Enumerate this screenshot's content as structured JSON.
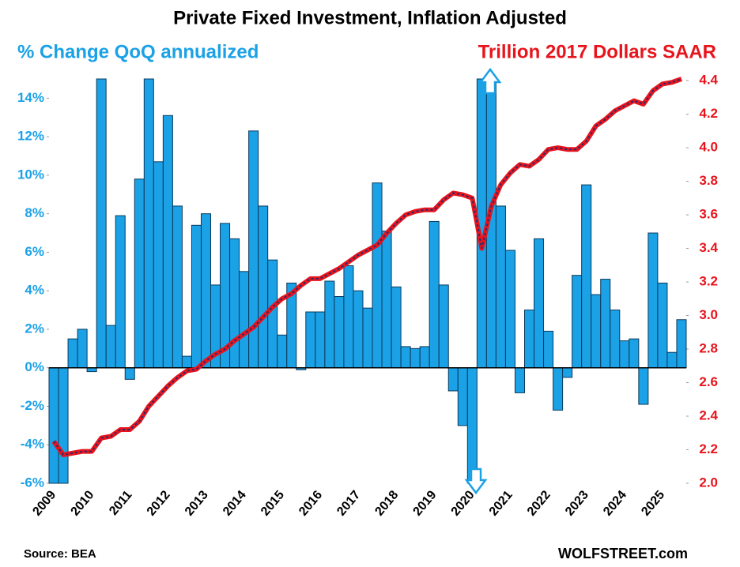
{
  "chart_data": {
    "type": "bar",
    "title": "Private Fixed Investment, Inflation Adjusted",
    "y_label": "% Change QoQ annualized",
    "y2_label": "Trillion 2017 Dollars SAAR",
    "source": "Source: BEA",
    "credit": "WOLFSTREET.com",
    "categories": [
      "2009",
      null,
      null,
      null,
      "2010",
      null,
      null,
      null,
      "2011",
      null,
      null,
      null,
      "2012",
      null,
      null,
      null,
      "2013",
      null,
      null,
      null,
      "2014",
      null,
      null,
      null,
      "2015",
      null,
      null,
      null,
      "2016",
      null,
      null,
      null,
      "2017",
      null,
      null,
      null,
      "2018",
      null,
      null,
      null,
      "2019",
      null,
      null,
      null,
      "2020",
      null,
      null,
      null,
      "2021",
      null,
      null,
      null,
      "2022",
      null,
      null,
      null,
      "2023",
      null,
      null,
      null,
      "2024",
      null,
      null,
      null,
      "2025",
      null,
      null
    ],
    "series": [
      {
        "name": "% Change QoQ annualized",
        "type": "bar",
        "axis": "y",
        "color": "#1ba1e6",
        "values": [
          -6,
          -6,
          1.5,
          2.0,
          -0.2,
          15,
          2.2,
          7.9,
          -0.6,
          9.8,
          15,
          10.7,
          13.1,
          8.4,
          0.6,
          7.4,
          8.0,
          4.3,
          7.5,
          6.7,
          5.0,
          12.3,
          8.4,
          5.6,
          1.7,
          4.4,
          -0.1,
          2.9,
          2.9,
          4.5,
          3.7,
          5.3,
          4.0,
          3.1,
          9.6,
          7.1,
          4.2,
          1.1,
          1.0,
          1.1,
          7.6,
          4.3,
          -1.2,
          -3.0,
          -6,
          15,
          15,
          8.4,
          6.1,
          -1.3,
          3.0,
          6.7,
          1.9,
          -2.2,
          -0.5,
          4.8,
          9.5,
          3.8,
          4.6,
          3.0,
          1.4,
          1.5,
          -1.9,
          7.0,
          4.4,
          0.8,
          2.5
        ]
      },
      {
        "name": "Trillion 2017 Dollars SAAR",
        "type": "line",
        "axis": "y2",
        "color": "#e8141c",
        "values": [
          2.25,
          2.17,
          2.18,
          2.19,
          2.19,
          2.27,
          2.28,
          2.32,
          2.32,
          2.37,
          2.46,
          2.52,
          2.58,
          2.63,
          2.67,
          2.68,
          2.73,
          2.77,
          2.8,
          2.85,
          2.89,
          2.93,
          2.99,
          3.05,
          3.1,
          3.13,
          3.18,
          3.22,
          3.22,
          3.25,
          3.28,
          3.32,
          3.36,
          3.39,
          3.42,
          3.49,
          3.55,
          3.6,
          3.62,
          3.63,
          3.63,
          3.69,
          3.73,
          3.72,
          3.7,
          3.4,
          3.65,
          3.78,
          3.85,
          3.9,
          3.89,
          3.93,
          3.99,
          4.0,
          3.99,
          3.99,
          4.04,
          4.13,
          4.17,
          4.22,
          4.25,
          4.28,
          4.26,
          4.34,
          4.38,
          4.39,
          4.41
        ]
      }
    ],
    "ylim": [
      -6,
      15
    ],
    "yticks": [
      {
        "value": -6,
        "label": "-6%"
      },
      {
        "value": -4,
        "label": "-4%"
      },
      {
        "value": -2,
        "label": "-2%"
      },
      {
        "value": 0,
        "label": "0%"
      },
      {
        "value": 2,
        "label": "2%"
      },
      {
        "value": 4,
        "label": "4%"
      },
      {
        "value": 6,
        "label": "6%"
      },
      {
        "value": 8,
        "label": "8%"
      },
      {
        "value": 10,
        "label": "10%"
      },
      {
        "value": 12,
        "label": "12%"
      },
      {
        "value": 14,
        "label": "14%"
      }
    ],
    "y2lim": [
      2.0,
      4.41
    ],
    "y2ticks": [
      {
        "value": 2,
        "label": "2.0"
      },
      2.2,
      2.4,
      2.6,
      2.8,
      {
        "value": 3,
        "label": "3.0"
      },
      3.2,
      3.4,
      3.6,
      3.8,
      {
        "value": 4,
        "label": "4.0"
      },
      4.2,
      4.4
    ],
    "grid": false
  }
}
